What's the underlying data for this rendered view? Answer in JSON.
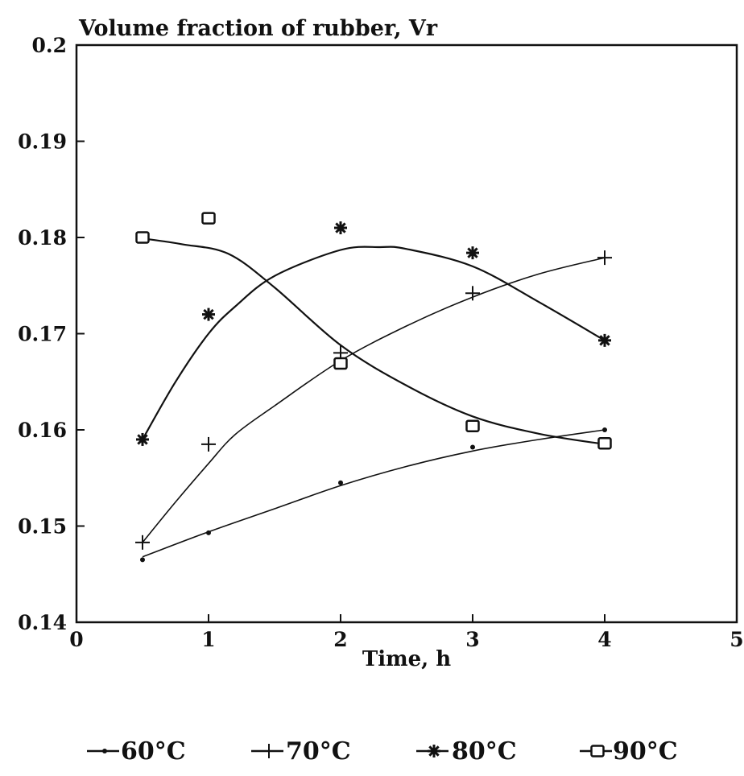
{
  "chart_data": {
    "type": "line",
    "title": "Volume fraction of rubber, Vr",
    "xlabel": "Time, h",
    "ylabel": "",
    "xlim": [
      0,
      5
    ],
    "ylim": [
      0.14,
      0.2
    ],
    "x_ticks": [
      "0",
      "1",
      "2",
      "3",
      "4",
      "5"
    ],
    "y_ticks": [
      "0.14",
      "0.15",
      "0.16",
      "0.17",
      "0.18",
      "0.19",
      "0.2"
    ],
    "x_tick_values": [
      0,
      1,
      2,
      3,
      4,
      5
    ],
    "y_tick_values": [
      0.14,
      0.15,
      0.16,
      0.17,
      0.18,
      0.19,
      0.2
    ],
    "grid": false,
    "legend_position": "bottom",
    "series": [
      {
        "name": "60°C",
        "marker": "dot",
        "x": [
          0.5,
          1,
          2,
          3,
          4
        ],
        "y": [
          0.1465,
          0.1493,
          0.1545,
          0.1582,
          0.16
        ],
        "curve_x": [
          0.5,
          1,
          1.5,
          2,
          2.5,
          3,
          3.5,
          4
        ],
        "curve_y": [
          0.1468,
          0.1494,
          0.1518,
          0.1542,
          0.1562,
          0.1578,
          0.159,
          0.16
        ]
      },
      {
        "name": "70°C",
        "marker": "plus",
        "x": [
          0.5,
          1,
          2,
          3,
          4
        ],
        "y": [
          0.1483,
          0.1585,
          0.168,
          0.1742,
          0.1779
        ],
        "curve_x": [
          0.5,
          0.75,
          1,
          1.2,
          1.5,
          2,
          2.5,
          3,
          3.5,
          4
        ],
        "curve_y": [
          0.1483,
          0.1525,
          0.1565,
          0.1595,
          0.1625,
          0.1672,
          0.1708,
          0.1738,
          0.1762,
          0.1779
        ]
      },
      {
        "name": "80°C",
        "marker": "star",
        "x": [
          0.5,
          1,
          2,
          3,
          4
        ],
        "y": [
          0.159,
          0.172,
          0.181,
          0.1784,
          0.1693
        ],
        "curve_x": [
          0.5,
          0.75,
          1,
          1.2,
          1.5,
          2,
          2.3,
          2.5,
          3,
          3.5,
          4
        ],
        "curve_y": [
          0.159,
          0.165,
          0.17,
          0.1728,
          0.176,
          0.1787,
          0.179,
          0.1788,
          0.177,
          0.1733,
          0.1693
        ]
      },
      {
        "name": "90°C",
        "marker": "square",
        "x": [
          0.5,
          1,
          2,
          3,
          4
        ],
        "y": [
          0.18,
          0.182,
          0.1669,
          0.1604,
          0.1586
        ],
        "curve_x": [
          0.5,
          0.8,
          1.15,
          1.5,
          2,
          2.5,
          3,
          3.5,
          4
        ],
        "curve_y": [
          0.1799,
          0.1793,
          0.1783,
          0.1748,
          0.1688,
          0.1646,
          0.1614,
          0.1596,
          0.1585
        ]
      }
    ]
  }
}
